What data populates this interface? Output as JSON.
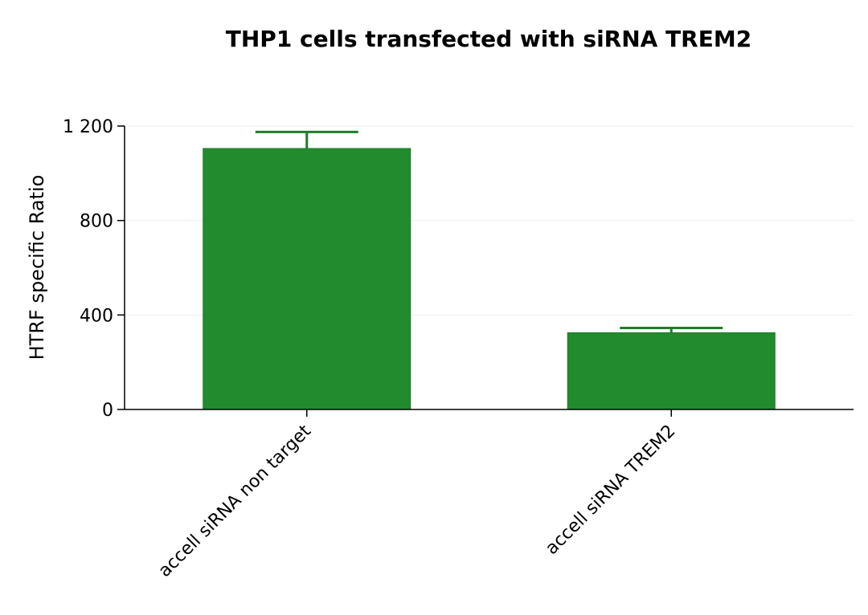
{
  "chart_data": {
    "type": "bar",
    "title": "THP1 cells transfected with siRNA TREM2",
    "xlabel": "",
    "ylabel": "HTRF specific Ratio",
    "categories": [
      "accell siRNA non target",
      "accell siRNA TREM2"
    ],
    "values": [
      1105,
      325
    ],
    "errors": [
      70,
      20
    ],
    "ylim": [
      0,
      1200
    ],
    "yticks": [
      0,
      400,
      800,
      1200
    ],
    "ytick_labels": [
      "0",
      "400",
      "800",
      "1 200"
    ],
    "grid": true,
    "legend": "none",
    "bar_color": "#228b2e",
    "bar_edge_color": "#1a7a24",
    "error_color": "#1f7d2a",
    "grid_color": "#eeeeee"
  }
}
